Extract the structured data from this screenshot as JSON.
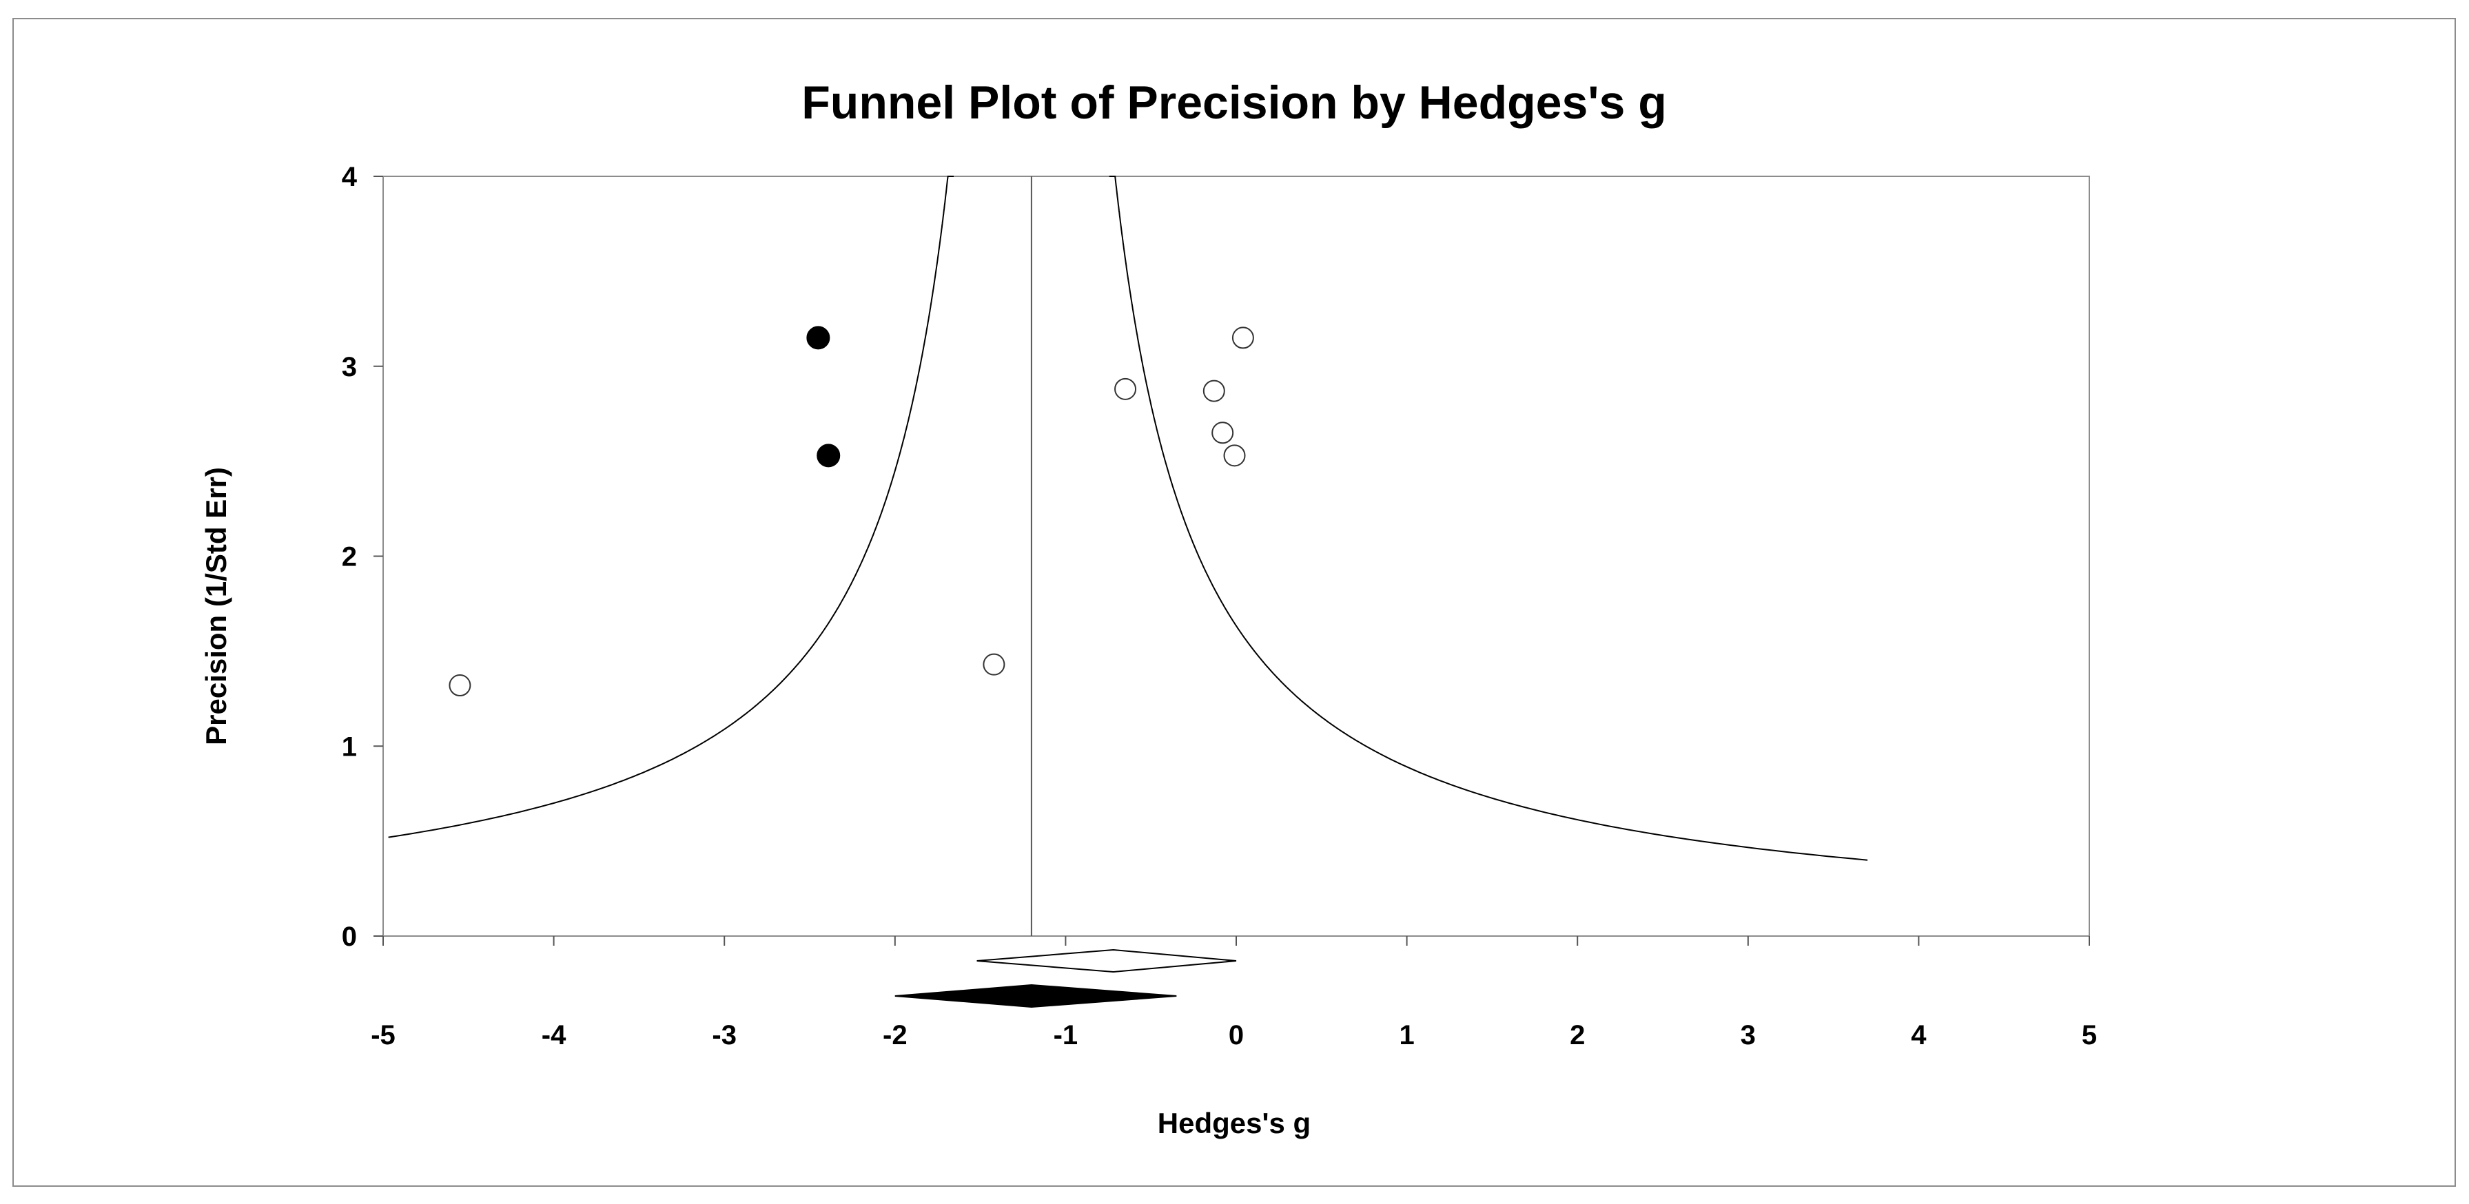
{
  "chart_data": {
    "type": "scatter",
    "title": "Funnel Plot of Precision by Hedges's g",
    "xlabel": "Hedges's g",
    "ylabel": "Precision (1/Std Err)",
    "xlim": [
      -5,
      5
    ],
    "ylim": [
      0,
      4
    ],
    "xticks": [
      -5,
      -4,
      -3,
      -2,
      -1,
      0,
      1,
      2,
      3,
      4,
      5
    ],
    "yticks": [
      0,
      1,
      2,
      3,
      4
    ],
    "grid": false,
    "legend": "none",
    "pooled_effect": -1.2,
    "funnel_z": 1.96,
    "observed_points": [
      {
        "x": -4.55,
        "y": 1.32
      },
      {
        "x": -1.42,
        "y": 1.43
      },
      {
        "x": -0.65,
        "y": 2.88
      },
      {
        "x": -0.13,
        "y": 2.87
      },
      {
        "x": -0.08,
        "y": 2.65
      },
      {
        "x": -0.01,
        "y": 2.53
      },
      {
        "x": 0.04,
        "y": 3.15
      }
    ],
    "imputed_points": [
      {
        "x": -2.45,
        "y": 3.15
      },
      {
        "x": -2.39,
        "y": 2.53
      }
    ],
    "observed_summary": {
      "estimate": -0.72,
      "lower": -1.52,
      "upper": 0.0
    },
    "adjusted_summary": {
      "estimate": -1.2,
      "lower": -2.0,
      "upper": -0.35
    },
    "colors": {
      "observed_fill": "#ffffff",
      "imputed_fill": "#000000",
      "line": "#000000",
      "frame": "#8c8c8c"
    }
  }
}
